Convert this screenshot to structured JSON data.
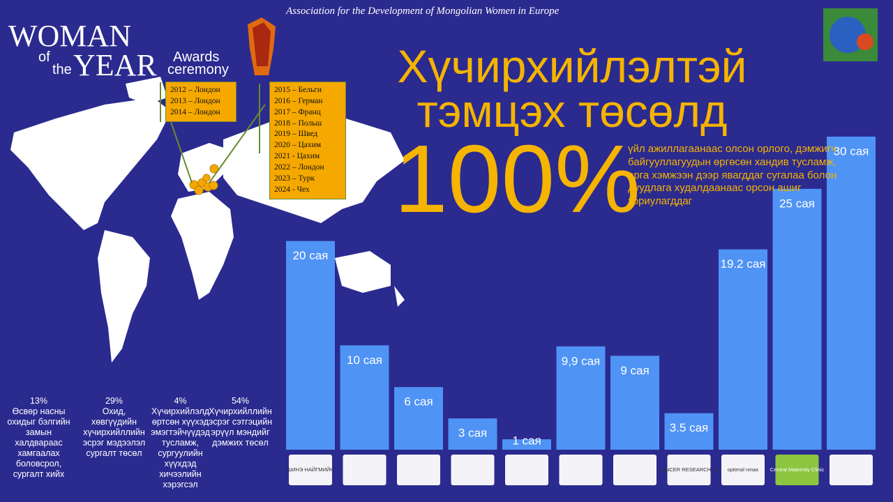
{
  "header": {
    "association": "Association for the Development of Mongolian Women in Europe",
    "logo_words": [
      "WOMAN",
      "of",
      "the",
      "YEAR",
      "Awards",
      "ceremony"
    ],
    "title_line1": "Хүчирхийлэлтэй",
    "title_line2": "тэмцэх төсөлд",
    "big_percent": "100%",
    "side_text": "үйл ажиллагаанаас олсон орлого, дэмжигч байгууллагуудын өргөсөн хандив тусламж, арга хэмжээн дээр явагддаг сугалаа болон дуудлага худалдаанаас орсон ашиг зориулагддаг"
  },
  "years": {
    "box1": [
      "2012 – Лондон",
      "2013 – Лондон",
      "2014 – Лондон"
    ],
    "box2": [
      "2015 – Бельги",
      "2016 – Герман",
      "2017 – Франц",
      "2018 – Польш",
      "2019 – Швед",
      "2020 – Цахим",
      "2021 - Цахим",
      "2022 – Лондон",
      "2023 – Турк",
      "2024 - Чех"
    ]
  },
  "stats": [
    {
      "percent": "13%",
      "text": "Өсвөр насны охидыг бэлгийн замын халдвараас хамгаалах боловсрол, сургалт хийх"
    },
    {
      "percent": "29%",
      "text": "Охид, хөвгүүдийн хүчирхийллийн эсрэг мэдээлэл сургалт төсөл"
    },
    {
      "percent": "4%",
      "text": "Хүчирхийлэлд өртсөн хүүхэд эмэгтэйчүүдэд тусламж, сургуулийн хүүхдэд хичээлийн хэрэгсэл"
    },
    {
      "percent": "54%",
      "text": "Хүчирхийллийн эсрэг сэтгэцийн эрүүл мэндийг дэмжих төсөл"
    }
  ],
  "chart_data": {
    "type": "bar",
    "color": "#4f93f5",
    "values": [
      20,
      10,
      6,
      3,
      1,
      9.9,
      9,
      3.5,
      19.2,
      25,
      30
    ],
    "value_labels": [
      "20 сая",
      "10 сая",
      "6 сая",
      "3 сая",
      "1 сая",
      "9,9 сая",
      "9 сая",
      "3.5 сая",
      "19.2 сая",
      "25 сая",
      "30 сая"
    ]
  },
  "logos": [
    "ШИНЭ НАЙГМИЙН",
    "",
    "",
    "",
    "",
    "",
    "",
    "CANCER RESEARCH UK",
    "optimal nmax",
    "Central Maternity Clinic",
    ""
  ]
}
